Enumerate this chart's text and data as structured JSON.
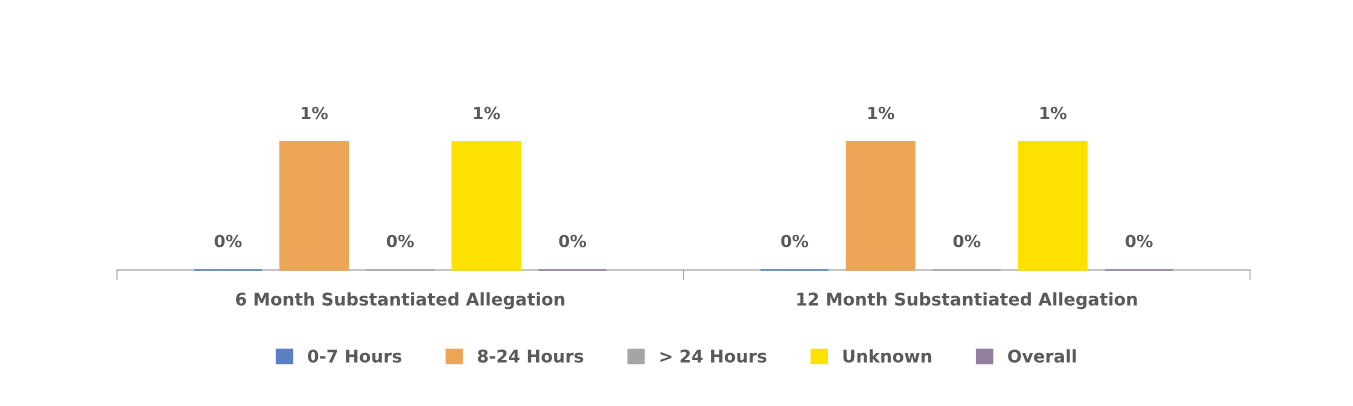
{
  "chart_data": {
    "type": "bar",
    "categories": [
      "6 Month Substantiated Allegation",
      "12 Month Substantiated Allegation"
    ],
    "series": [
      {
        "name": "0-7 Hours",
        "color": "#5b7fc4",
        "values": [
          0,
          0
        ],
        "value_labels": [
          "0%",
          "0%"
        ]
      },
      {
        "name": "8-24 Hours",
        "color": "#eda557",
        "values": [
          1,
          1
        ],
        "value_labels": [
          "1%",
          "1%"
        ]
      },
      {
        "name": "> 24 Hours",
        "color": "#a5a5a5",
        "values": [
          0,
          0
        ],
        "value_labels": [
          "0%",
          "0%"
        ]
      },
      {
        "name": "Unknown",
        "color": "#fde100",
        "values": [
          1,
          1
        ],
        "value_labels": [
          "1%",
          "1%"
        ]
      },
      {
        "name": "Overall",
        "color": "#937ea0",
        "values": [
          0,
          0
        ],
        "value_labels": [
          "0%",
          "0%"
        ]
      }
    ],
    "legend": "bottom",
    "grid": false
  }
}
